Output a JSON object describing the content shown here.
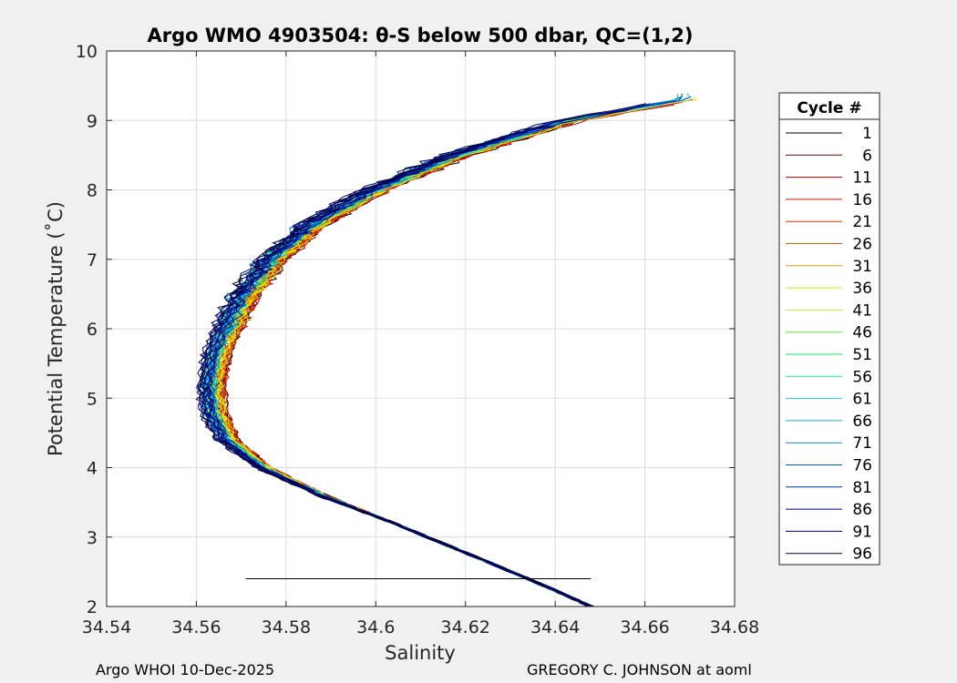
{
  "chart_data": {
    "type": "line",
    "title": "Argo WMO 4903504: θ-S below 500 dbar,  QC=(1,2)",
    "xlabel": "Salinity",
    "ylabel": "Potential Temperature (˚C)",
    "xlim": [
      34.54,
      34.68
    ],
    "ylim": [
      2,
      10
    ],
    "xticks": [
      "34.54",
      "34.56",
      "34.58",
      "34.6",
      "34.62",
      "34.64",
      "34.66",
      "34.68"
    ],
    "yticks": [
      "2",
      "3",
      "4",
      "5",
      "6",
      "7",
      "8",
      "9",
      "10"
    ],
    "grid": true,
    "legend": {
      "title": "Cycle #",
      "position": "outside-right",
      "entries": [
        "1",
        "6",
        "11",
        "16",
        "21",
        "26",
        "31",
        "36",
        "41",
        "46",
        "51",
        "56",
        "61",
        "66",
        "71",
        "76",
        "81",
        "86",
        "91",
        "96"
      ],
      "colors": [
        "#000000",
        "#6a0000",
        "#a00000",
        "#cc1000",
        "#dd3300",
        "#e06000",
        "#dca000",
        "#e8e800",
        "#c8f030",
        "#60e040",
        "#20e060",
        "#20e0b0",
        "#10d8d8",
        "#10b0e0",
        "#0090c0",
        "#0060d8",
        "#0030b0",
        "#000090",
        "#000060",
        "#000040"
      ]
    },
    "series_profile": {
      "theta": [
        2.0,
        2.4,
        2.8,
        3.2,
        3.6,
        4.0,
        4.4,
        4.8,
        5.2,
        5.6,
        6.0,
        6.5,
        7.0,
        7.5,
        8.0,
        8.5,
        9.0,
        9.3
      ],
      "salinity": [
        34.648,
        34.634,
        34.619,
        34.604,
        34.588,
        34.575,
        34.567,
        34.564,
        34.5635,
        34.5645,
        34.567,
        34.571,
        34.577,
        34.586,
        34.6,
        34.618,
        34.643,
        34.67
      ]
    },
    "annotation_line": {
      "theta": 2.4,
      "salinity": [
        34.571,
        34.648
      ]
    }
  },
  "footer": {
    "left": "Argo WHOI 10-Dec-2025",
    "right": "GREGORY C. JOHNSON at aoml"
  }
}
